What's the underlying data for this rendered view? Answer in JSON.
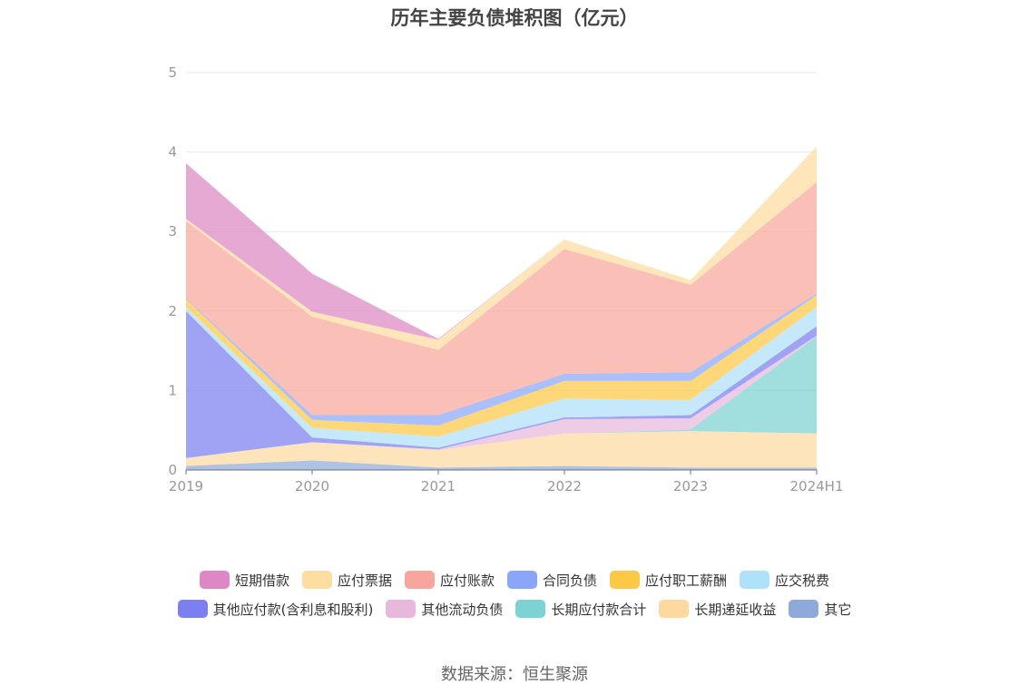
{
  "title": "历年主要负债堆积图（亿元）",
  "source": "数据来源：恒生聚源",
  "chart_data": {
    "type": "area",
    "stacked": true,
    "x": [
      "2019",
      "2020",
      "2021",
      "2022",
      "2023",
      "2024H1"
    ],
    "ylim": [
      0,
      5
    ],
    "yticks": [
      "0",
      "1",
      "2",
      "3",
      "4",
      "5"
    ],
    "grid": true,
    "legend_position": "bottom",
    "series": [
      {
        "name": "其它",
        "color": "#8eaadb",
        "values": [
          0.05,
          0.12,
          0.03,
          0.05,
          0.03,
          0.03
        ]
      },
      {
        "name": "长期递延收益",
        "color": "#fdd9a0",
        "values": [
          0.1,
          0.23,
          0.22,
          0.41,
          0.46,
          0.43
        ]
      },
      {
        "name": "长期应付款合计",
        "color": "#7dd3d3",
        "values": [
          0,
          0,
          0,
          0,
          0.02,
          1.22
        ]
      },
      {
        "name": "其他流动负债",
        "color": "#e8b8dc",
        "values": [
          0,
          0,
          0.01,
          0.18,
          0.14,
          0.01
        ]
      },
      {
        "name": "其他应付款(含利息和股利)",
        "color": "#7b7ff0",
        "values": [
          1.85,
          0.06,
          0.02,
          0.02,
          0.04,
          0.12
        ]
      },
      {
        "name": "应交税费",
        "color": "#aee1fa",
        "values": [
          0.05,
          0.12,
          0.14,
          0.24,
          0.19,
          0.24
        ]
      },
      {
        "name": "应付职工薪酬",
        "color": "#fdc944",
        "values": [
          0.1,
          0.1,
          0.14,
          0.22,
          0.24,
          0.15
        ]
      },
      {
        "name": "合同负债",
        "color": "#8aa6f8",
        "values": [
          0.01,
          0.06,
          0.13,
          0.09,
          0.11,
          0.02
        ]
      },
      {
        "name": "应付账款",
        "color": "#f8a69b",
        "values": [
          0.97,
          1.24,
          0.82,
          1.57,
          1.1,
          1.4
        ]
      },
      {
        "name": "应付票据",
        "color": "#fedda0",
        "values": [
          0.03,
          0.06,
          0.13,
          0.12,
          0.06,
          0.45
        ]
      },
      {
        "name": "短期借款",
        "color": "#dd88c4",
        "values": [
          0.7,
          0.48,
          0.01,
          0,
          0,
          0
        ]
      }
    ]
  },
  "legend": {
    "row1": [
      {
        "label": "短期借款",
        "color": "#dd88c4"
      },
      {
        "label": "应付票据",
        "color": "#fedda0"
      },
      {
        "label": "应付账款",
        "color": "#f8a69b"
      },
      {
        "label": "合同负债",
        "color": "#8aa6f8"
      },
      {
        "label": "应付职工薪酬",
        "color": "#fdc944"
      },
      {
        "label": "应交税费",
        "color": "#aee1fa"
      }
    ],
    "row2": [
      {
        "label": "其他应付款(含利息和股利)",
        "color": "#7b7ff0"
      },
      {
        "label": "其他流动负债",
        "color": "#e8b8dc"
      },
      {
        "label": "长期应付款合计",
        "color": "#7dd3d3"
      },
      {
        "label": "长期递延收益",
        "color": "#fdd9a0"
      },
      {
        "label": "其它",
        "color": "#8eaadb"
      }
    ]
  }
}
